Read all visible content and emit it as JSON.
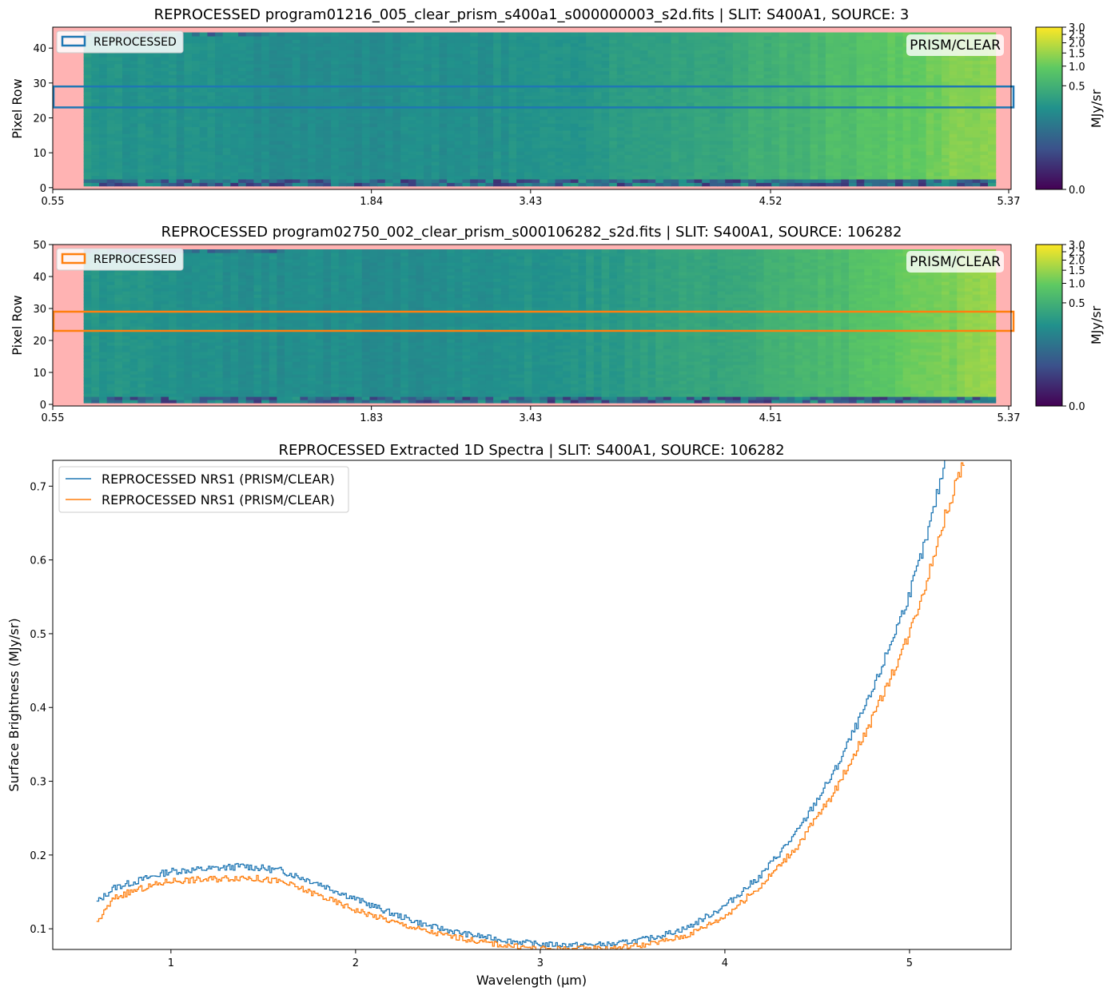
{
  "figure": {
    "colormap": [
      "#440154",
      "#3b528b",
      "#21918c",
      "#5ec962",
      "#fde725"
    ],
    "mask_color": "#ffb3b3",
    "legend_frame_color": "#cccccc"
  },
  "chart_data": [
    {
      "type": "heatmap",
      "title": "REPROCESSED program01216_005_clear_prism_s400a1_s000000003_s2d.fits | SLIT: S400A1, SOURCE: 3",
      "xlabel": "",
      "ylabel": "Pixel Row",
      "xticks": [
        "0.55",
        "1.84",
        "3.43",
        "4.52",
        "5.37"
      ],
      "yticks": [
        0,
        10,
        20,
        30,
        40
      ],
      "ylim": [
        -0.5,
        46
      ],
      "rows": 46,
      "data_cols": [
        4,
        121
      ],
      "extraction_rows": [
        23,
        29
      ],
      "legend": {
        "label": "REPROCESSED",
        "color": "#1f77b4",
        "placement": "upper left"
      },
      "annotation": "PRISM/CLEAR",
      "colorbar": {
        "label": "MJy/sr",
        "ticks": [
          "0.0",
          "0.5",
          "1.0",
          "1.5",
          "2.0",
          "2.5",
          "3.0"
        ]
      }
    },
    {
      "type": "heatmap",
      "title": "REPROCESSED program02750_002_clear_prism_s000106282_s2d.fits | SLIT: S400A1, SOURCE: 106282",
      "xlabel": "",
      "ylabel": "Pixel Row",
      "xticks": [
        "0.55",
        "1.83",
        "3.43",
        "4.51",
        "5.37"
      ],
      "yticks": [
        0,
        10,
        20,
        30,
        40,
        50
      ],
      "ylim": [
        -0.5,
        50
      ],
      "rows": 50,
      "data_cols": [
        4,
        121
      ],
      "extraction_rows": [
        23,
        29
      ],
      "legend": {
        "label": "REPROCESSED",
        "color": "#ff7f0e",
        "placement": "upper left"
      },
      "annotation": "PRISM/CLEAR",
      "colorbar": {
        "label": "MJy/sr",
        "ticks": [
          "0.0",
          "0.5",
          "1.0",
          "1.5",
          "2.0",
          "2.5",
          "3.0"
        ]
      }
    },
    {
      "type": "line",
      "title": "REPROCESSED Extracted 1D Spectra | SLIT: S400A1, SOURCE: 106282",
      "xlabel": "Wavelength (µm)",
      "ylabel": "Surface Brightness (MJy/sr)",
      "xlim": [
        0.36,
        5.55
      ],
      "ylim": [
        0.072,
        0.735
      ],
      "xticks": [
        1,
        2,
        3,
        4,
        5
      ],
      "yticks": [
        0.1,
        0.2,
        0.3,
        0.4,
        0.5,
        0.6,
        0.7
      ],
      "grid": false,
      "legend_position": "upper left",
      "drawstyle": "steps",
      "series": [
        {
          "name": "REPROCESSED NRS1 (PRISM/CLEAR)",
          "color": "#1f77b4",
          "x": [
            0.6,
            0.7,
            0.8,
            1.0,
            1.2,
            1.4,
            1.6,
            1.8,
            2.0,
            2.2,
            2.4,
            2.6,
            2.8,
            3.0,
            3.2,
            3.4,
            3.6,
            3.8,
            4.0,
            4.2,
            4.4,
            4.6,
            4.8,
            5.0,
            5.1,
            5.2
          ],
          "y": [
            0.135,
            0.156,
            0.163,
            0.178,
            0.181,
            0.185,
            0.179,
            0.162,
            0.141,
            0.121,
            0.104,
            0.093,
            0.085,
            0.079,
            0.078,
            0.079,
            0.087,
            0.101,
            0.13,
            0.172,
            0.232,
            0.313,
            0.418,
            0.55,
            0.63,
            0.735
          ]
        },
        {
          "name": "REPROCESSED NRS1 (PRISM/CLEAR)",
          "color": "#ff7f0e",
          "x": [
            0.6,
            0.7,
            0.8,
            1.0,
            1.2,
            1.4,
            1.6,
            1.8,
            2.0,
            2.2,
            2.4,
            2.6,
            2.8,
            3.0,
            3.2,
            3.4,
            3.6,
            3.8,
            4.0,
            4.2,
            4.4,
            4.6,
            4.8,
            5.0,
            5.1,
            5.2,
            5.3
          ],
          "y": [
            0.107,
            0.142,
            0.151,
            0.165,
            0.167,
            0.17,
            0.164,
            0.146,
            0.126,
            0.11,
            0.096,
            0.086,
            0.078,
            0.073,
            0.073,
            0.074,
            0.079,
            0.091,
            0.116,
            0.158,
            0.213,
            0.286,
            0.382,
            0.497,
            0.573,
            0.66,
            0.735
          ]
        }
      ]
    }
  ]
}
